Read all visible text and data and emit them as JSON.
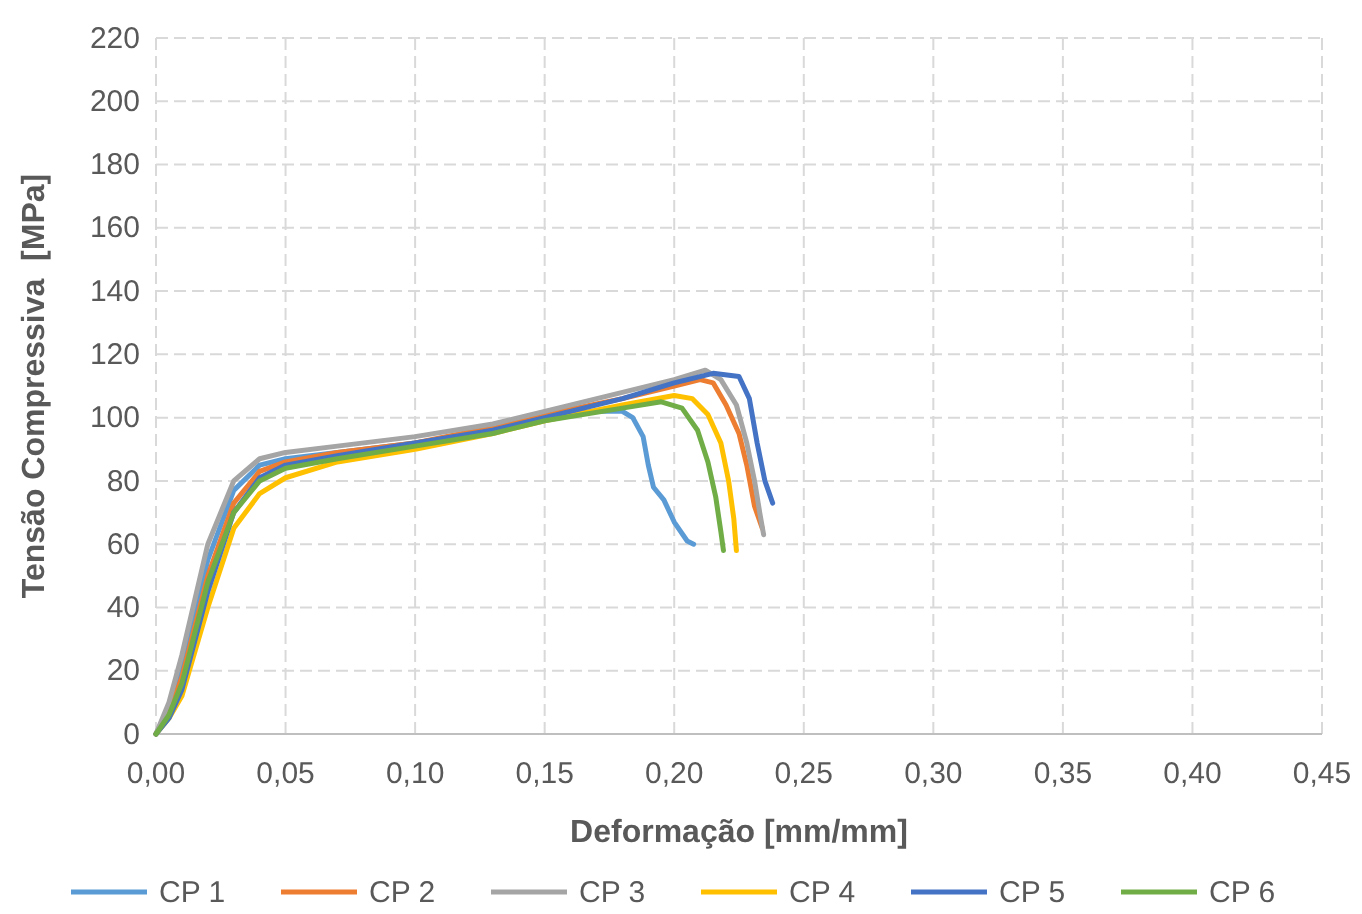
{
  "chart_data": {
    "type": "line",
    "xlabel": "Deformação [mm/mm]",
    "ylabel": "Tensão Compressiva  [MPa]",
    "xlim": [
      0,
      0.45
    ],
    "ylim": [
      0,
      220
    ],
    "xticks": [
      {
        "value": 0,
        "label": "0,00"
      },
      {
        "value": 0.05,
        "label": "0,05"
      },
      {
        "value": 0.1,
        "label": "0,10"
      },
      {
        "value": 0.15,
        "label": "0,15"
      },
      {
        "value": 0.2,
        "label": "0,20"
      },
      {
        "value": 0.25,
        "label": "0,25"
      },
      {
        "value": 0.3,
        "label": "0,30"
      },
      {
        "value": 0.35,
        "label": "0,35"
      },
      {
        "value": 0.4,
        "label": "0,40"
      },
      {
        "value": 0.45,
        "label": "0,45"
      }
    ],
    "yticks": [
      0,
      20,
      40,
      60,
      80,
      100,
      120,
      140,
      160,
      180,
      200,
      220
    ],
    "grid": true,
    "legend": "bottom",
    "marker": "none",
    "line_style": "solid",
    "series": [
      {
        "name": "CP 1",
        "color": "#5b9bd5",
        "x": [
          0,
          0.005,
          0.01,
          0.02,
          0.03,
          0.04,
          0.05,
          0.07,
          0.1,
          0.13,
          0.15,
          0.17,
          0.18,
          0.184,
          0.188,
          0.19,
          0.192,
          0.196,
          0.2,
          0.205,
          0.2075
        ],
        "values": [
          0,
          8,
          20,
          55,
          77,
          85,
          87,
          89,
          92,
          96,
          100,
          102,
          102,
          100,
          94,
          85,
          78,
          74,
          67,
          61,
          60
        ]
      },
      {
        "name": "CP 2",
        "color": "#ed7d31",
        "x": [
          0,
          0.005,
          0.01,
          0.02,
          0.03,
          0.04,
          0.05,
          0.07,
          0.1,
          0.13,
          0.15,
          0.18,
          0.2,
          0.21,
          0.215,
          0.22,
          0.225,
          0.228,
          0.231,
          0.234
        ],
        "values": [
          0,
          7,
          18,
          50,
          73,
          83,
          86,
          89,
          92,
          97,
          101,
          106,
          110,
          112,
          111,
          104,
          95,
          85,
          72,
          65
        ]
      },
      {
        "name": "CP 3",
        "color": "#a5a5a5",
        "x": [
          0,
          0.005,
          0.01,
          0.02,
          0.03,
          0.04,
          0.05,
          0.07,
          0.1,
          0.13,
          0.15,
          0.18,
          0.2,
          0.212,
          0.218,
          0.224,
          0.228,
          0.231,
          0.233,
          0.2345
        ],
        "values": [
          0,
          10,
          25,
          60,
          80,
          87,
          89,
          91,
          94,
          98,
          102,
          108,
          112,
          115,
          112,
          104,
          92,
          80,
          70,
          63
        ]
      },
      {
        "name": "CP 4",
        "color": "#ffc000",
        "x": [
          0,
          0.005,
          0.01,
          0.02,
          0.03,
          0.04,
          0.05,
          0.07,
          0.1,
          0.13,
          0.15,
          0.18,
          0.2,
          0.207,
          0.213,
          0.218,
          0.221,
          0.223,
          0.224
        ],
        "values": [
          0,
          5,
          12,
          40,
          65,
          76,
          81,
          86,
          90,
          95,
          99,
          104,
          107,
          106,
          101,
          92,
          80,
          68,
          58
        ]
      },
      {
        "name": "CP 5",
        "color": "#4472c4",
        "x": [
          0,
          0.005,
          0.01,
          0.02,
          0.03,
          0.04,
          0.05,
          0.07,
          0.1,
          0.13,
          0.15,
          0.18,
          0.2,
          0.215,
          0.225,
          0.229,
          0.232,
          0.235,
          0.238
        ],
        "values": [
          0,
          5,
          14,
          45,
          70,
          81,
          85,
          88,
          92,
          96,
          100,
          106,
          111,
          114,
          113,
          106,
          92,
          80,
          73
        ]
      },
      {
        "name": "CP 6",
        "color": "#70ad47",
        "x": [
          0,
          0.005,
          0.01,
          0.02,
          0.03,
          0.04,
          0.05,
          0.07,
          0.1,
          0.13,
          0.15,
          0.18,
          0.195,
          0.203,
          0.209,
          0.213,
          0.216,
          0.218,
          0.219
        ],
        "values": [
          0,
          6,
          16,
          48,
          70,
          80,
          84,
          87,
          91,
          95,
          99,
          103,
          105,
          103,
          96,
          86,
          75,
          64,
          58
        ]
      }
    ]
  }
}
